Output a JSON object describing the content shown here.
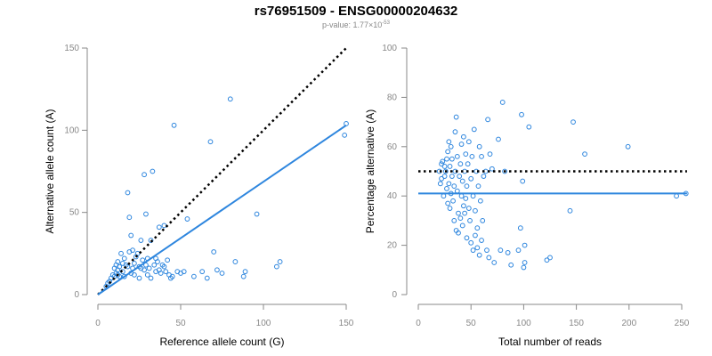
{
  "header": {
    "title": "rs76951509 - ENSG00000204632",
    "pvalue_prefix": "p-value: 1.77×10",
    "pvalue_exponent": "-53"
  },
  "colors": {
    "points": "#2E86DE",
    "fit_line": "#2E86DE",
    "reference_line": "#000000",
    "axis": "#888888"
  },
  "chart_data": [
    {
      "type": "scatter",
      "title": "",
      "xlabel": "Reference allele count (G)",
      "ylabel": "Alternative allele count (A)",
      "xlim": [
        0,
        150
      ],
      "ylim": [
        0,
        150
      ],
      "xticks": [
        0,
        50,
        100,
        150
      ],
      "yticks": [
        0,
        50,
        100,
        150
      ],
      "grid": false,
      "fit_line": {
        "x": [
          0,
          150
        ],
        "y": [
          0,
          103
        ]
      },
      "reference_line": {
        "style": "dotted",
        "x": [
          0,
          150
        ],
        "y": [
          0,
          150
        ]
      },
      "points": [
        [
          5,
          5
        ],
        [
          6,
          7
        ],
        [
          7,
          8
        ],
        [
          8,
          10
        ],
        [
          9,
          12
        ],
        [
          10,
          11
        ],
        [
          10,
          16
        ],
        [
          11,
          13
        ],
        [
          11,
          18
        ],
        [
          12,
          12
        ],
        [
          12,
          15
        ],
        [
          12,
          20
        ],
        [
          13,
          17
        ],
        [
          13,
          11
        ],
        [
          14,
          25
        ],
        [
          15,
          19
        ],
        [
          15,
          14
        ],
        [
          16,
          11
        ],
        [
          16,
          22
        ],
        [
          17,
          18
        ],
        [
          18,
          17
        ],
        [
          18,
          62
        ],
        [
          19,
          47
        ],
        [
          19,
          26
        ],
        [
          20,
          13
        ],
        [
          20,
          36
        ],
        [
          21,
          16
        ],
        [
          21,
          27
        ],
        [
          22,
          19
        ],
        [
          22,
          12
        ],
        [
          23,
          23
        ],
        [
          24,
          25
        ],
        [
          25,
          17
        ],
        [
          25,
          10
        ],
        [
          26,
          33
        ],
        [
          26,
          16
        ],
        [
          27,
          21
        ],
        [
          28,
          15
        ],
        [
          28,
          73
        ],
        [
          29,
          18
        ],
        [
          29,
          49
        ],
        [
          30,
          22
        ],
        [
          30,
          12
        ],
        [
          31,
          16
        ],
        [
          32,
          10
        ],
        [
          32,
          33
        ],
        [
          33,
          75
        ],
        [
          34,
          18
        ],
        [
          35,
          14
        ],
        [
          35,
          22
        ],
        [
          36,
          20
        ],
        [
          37,
          41
        ],
        [
          37,
          15
        ],
        [
          38,
          13
        ],
        [
          39,
          18
        ],
        [
          40,
          17
        ],
        [
          40,
          42
        ],
        [
          41,
          14
        ],
        [
          42,
          21
        ],
        [
          43,
          12
        ],
        [
          44,
          10
        ],
        [
          45,
          11
        ],
        [
          46,
          103
        ],
        [
          48,
          14
        ],
        [
          50,
          13
        ],
        [
          52,
          14
        ],
        [
          54,
          46
        ],
        [
          58,
          11
        ],
        [
          63,
          14
        ],
        [
          66,
          10
        ],
        [
          68,
          93
        ],
        [
          70,
          26
        ],
        [
          72,
          15
        ],
        [
          75,
          13
        ],
        [
          80,
          119
        ],
        [
          83,
          20
        ],
        [
          88,
          11
        ],
        [
          89,
          14
        ],
        [
          96,
          49
        ],
        [
          108,
          17
        ],
        [
          110,
          20
        ],
        [
          149,
          97
        ],
        [
          150,
          104
        ]
      ]
    },
    {
      "type": "scatter",
      "title": "",
      "xlabel": "Total number of reads",
      "ylabel": "Percentage alternative (A)",
      "xlim": [
        0,
        250
      ],
      "ylim": [
        0,
        100
      ],
      "xticks": [
        0,
        50,
        100,
        150,
        200,
        250
      ],
      "yticks": [
        0,
        20,
        40,
        60,
        80,
        100
      ],
      "grid": false,
      "fit_line": {
        "x": [
          0,
          255
        ],
        "y": [
          41,
          41
        ]
      },
      "reference_line": {
        "style": "dotted",
        "x": [
          0,
          255
        ],
        "y": [
          50,
          50
        ]
      },
      "points": [
        [
          20,
          50
        ],
        [
          21,
          45
        ],
        [
          22,
          53
        ],
        [
          22,
          47
        ],
        [
          23,
          54
        ],
        [
          24,
          40
        ],
        [
          25,
          52
        ],
        [
          25,
          48
        ],
        [
          26,
          50
        ],
        [
          27,
          55
        ],
        [
          27,
          43
        ],
        [
          28,
          58
        ],
        [
          28,
          37
        ],
        [
          29,
          62
        ],
        [
          29,
          45
        ],
        [
          30,
          35
        ],
        [
          30,
          52
        ],
        [
          31,
          60
        ],
        [
          31,
          41
        ],
        [
          32,
          48
        ],
        [
          32,
          55
        ],
        [
          33,
          38
        ],
        [
          34,
          44
        ],
        [
          34,
          30
        ],
        [
          35,
          66
        ],
        [
          35,
          50
        ],
        [
          36,
          72
        ],
        [
          36,
          26
        ],
        [
          37,
          42
        ],
        [
          37,
          56
        ],
        [
          38,
          25
        ],
        [
          38,
          33
        ],
        [
          39,
          48
        ],
        [
          40,
          53
        ],
        [
          40,
          31
        ],
        [
          41,
          61
        ],
        [
          41,
          40
        ],
        [
          42,
          28
        ],
        [
          42,
          46
        ],
        [
          43,
          64
        ],
        [
          43,
          36
        ],
        [
          44,
          50
        ],
        [
          44,
          33
        ],
        [
          45,
          57
        ],
        [
          45,
          39
        ],
        [
          46,
          23
        ],
        [
          46,
          44
        ],
        [
          47,
          53
        ],
        [
          48,
          35
        ],
        [
          48,
          62
        ],
        [
          49,
          30
        ],
        [
          50,
          47
        ],
        [
          50,
          21
        ],
        [
          51,
          56
        ],
        [
          52,
          40
        ],
        [
          52,
          18
        ],
        [
          53,
          67
        ],
        [
          54,
          24
        ],
        [
          54,
          34
        ],
        [
          55,
          50
        ],
        [
          56,
          27
        ],
        [
          56,
          19
        ],
        [
          57,
          44
        ],
        [
          58,
          60
        ],
        [
          58,
          16
        ],
        [
          59,
          38
        ],
        [
          60,
          56
        ],
        [
          60,
          22
        ],
        [
          61,
          30
        ],
        [
          62,
          48
        ],
        [
          64,
          50
        ],
        [
          65,
          18
        ],
        [
          66,
          71
        ],
        [
          67,
          15
        ],
        [
          68,
          57
        ],
        [
          70,
          51
        ],
        [
          72,
          13
        ],
        [
          76,
          63
        ],
        [
          78,
          18
        ],
        [
          80,
          78
        ],
        [
          82,
          50
        ],
        [
          85,
          17
        ],
        [
          88,
          12
        ],
        [
          95,
          18
        ],
        [
          97,
          27
        ],
        [
          98,
          73
        ],
        [
          99,
          46
        ],
        [
          100,
          11
        ],
        [
          101,
          20
        ],
        [
          101,
          13
        ],
        [
          105,
          68
        ],
        [
          122,
          14
        ],
        [
          125,
          15
        ],
        [
          144,
          34
        ],
        [
          147,
          70
        ],
        [
          158,
          57
        ],
        [
          199,
          60
        ],
        [
          245,
          40
        ],
        [
          254,
          41
        ]
      ]
    }
  ]
}
